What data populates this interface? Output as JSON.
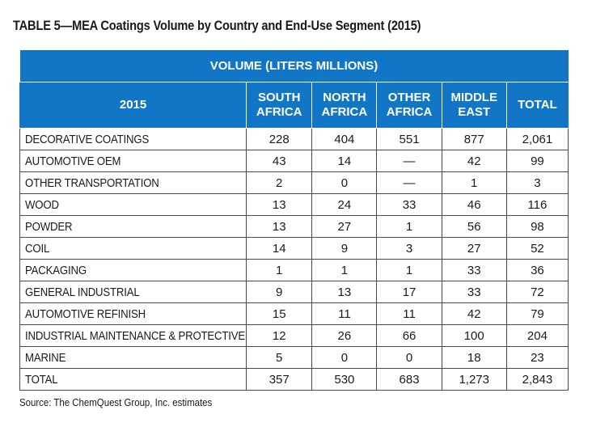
{
  "title": "TABLE 5—MEA Coatings Volume by Country and End-Use Segment (2015)",
  "header": {
    "band": "VOLUME (LITERS MILLIONS)",
    "year": "2015",
    "columns": [
      {
        "line1": "SOUTH",
        "line2": "AFRICA"
      },
      {
        "line1": "NORTH",
        "line2": "AFRICA"
      },
      {
        "line1": "OTHER",
        "line2": "AFRICA"
      },
      {
        "line1": "MIDDLE",
        "line2": "EAST"
      },
      {
        "line1": "TOTAL",
        "line2": ""
      }
    ]
  },
  "rows": [
    {
      "label": "DECORATIVE COATINGS",
      "values": [
        "228",
        "404",
        "551",
        "877",
        "2,061"
      ]
    },
    {
      "label": "AUTOMOTIVE OEM",
      "values": [
        "43",
        "14",
        "—",
        "42",
        "99"
      ]
    },
    {
      "label": "OTHER TRANSPORTATION",
      "values": [
        "2",
        "0",
        "—",
        "1",
        "3"
      ]
    },
    {
      "label": "WOOD",
      "values": [
        "13",
        "24",
        "33",
        "46",
        "116"
      ]
    },
    {
      "label": "POWDER",
      "values": [
        "13",
        "27",
        "1",
        "56",
        "98"
      ]
    },
    {
      "label": "COIL",
      "values": [
        "14",
        "9",
        "3",
        "27",
        "52"
      ]
    },
    {
      "label": "PACKAGING",
      "values": [
        "1",
        "1",
        "1",
        "33",
        "36"
      ]
    },
    {
      "label": "GENERAL INDUSTRIAL",
      "values": [
        "9",
        "13",
        "17",
        "33",
        "72"
      ]
    },
    {
      "label": "AUTOMOTIVE REFINISH",
      "values": [
        "15",
        "11",
        "11",
        "42",
        "79"
      ]
    },
    {
      "label": "INDUSTRIAL MAINTENANCE & PROTECTIVE",
      "values": [
        "12",
        "26",
        "66",
        "100",
        "204"
      ]
    },
    {
      "label": "MARINE",
      "values": [
        "5",
        "0",
        "0",
        "18",
        "23"
      ]
    },
    {
      "label": "TOTAL",
      "values": [
        "357",
        "530",
        "683",
        "1,273",
        "2,843"
      ]
    }
  ],
  "source": "Source: The ChemQuest Group, Inc. estimates",
  "colors": {
    "header_bg": "#1276c6",
    "header_text": "#ffffff",
    "grid": "#4a4a4a"
  }
}
